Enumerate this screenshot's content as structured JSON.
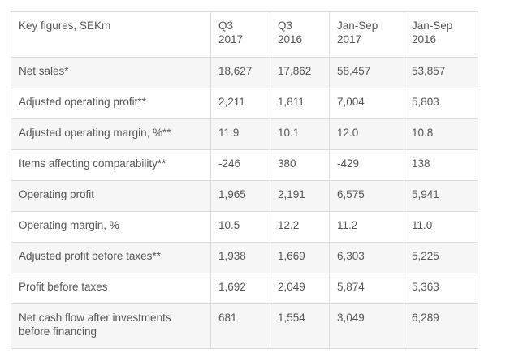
{
  "table": {
    "headers": [
      "Key figures, SEKm",
      "Q3\n2017",
      "Q3\n2016",
      "Jan-Sep\n2017",
      "Jan-Sep\n2016"
    ],
    "rows": [
      [
        "Net sales*",
        "18,627",
        "17,862",
        "58,457",
        "53,857"
      ],
      [
        "Adjusted operating profit**",
        "2,211",
        "1,811",
        "7,004",
        "5,803"
      ],
      [
        "Adjusted operating margin, %**",
        "11.9",
        "10.1",
        "12.0",
        "10.8"
      ],
      [
        "Items affecting comparability**",
        "-246",
        "380",
        "-429",
        "138"
      ],
      [
        "Operating profit",
        "1,965",
        "2,191",
        "6,575",
        "5,941"
      ],
      [
        "Operating margin, %",
        "10.5",
        "12.2",
        "11.2",
        "11.0"
      ],
      [
        "Adjusted profit before taxes**",
        "1,938",
        "1,669",
        "6,303",
        "5,225"
      ],
      [
        "Profit before taxes",
        "1,692",
        "2,049",
        "5,874",
        "5,363"
      ],
      [
        "Net cash flow after investments\nbefore financing",
        "681",
        "1,554",
        "3,049",
        "6,289"
      ]
    ]
  }
}
